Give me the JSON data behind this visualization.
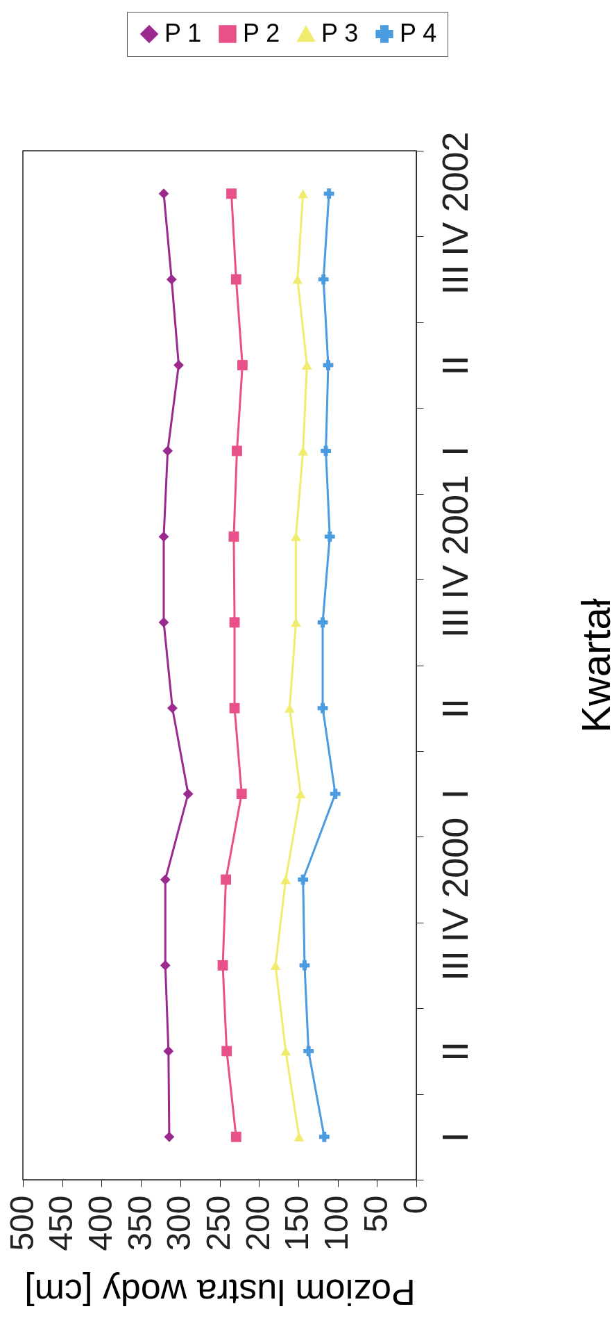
{
  "chart_data": {
    "type": "line",
    "orientation": "horizontal",
    "xlabel": "Poziom lustra wody [cm]",
    "ylabel": "Kwartał",
    "categories": [
      "IV 2002",
      "III",
      "II",
      "I",
      "IV 2001",
      "III",
      "II",
      "I",
      "IV 2000",
      "III",
      "II",
      "I"
    ],
    "series": [
      {
        "name": "P 1",
        "color": "#9b2a8f",
        "marker": "diamond",
        "values": [
          321,
          311,
          302,
          316,
          321,
          321,
          310,
          290,
          319,
          319,
          315,
          314
        ]
      },
      {
        "name": "P 2",
        "color": "#e8508a",
        "marker": "square",
        "values": [
          235,
          229,
          221,
          228,
          232,
          231,
          231,
          222,
          242,
          246,
          241,
          229
        ]
      },
      {
        "name": "P 3",
        "color": "#f2ec6e",
        "marker": "triangle",
        "values": [
          144,
          151,
          139,
          144,
          153,
          153,
          161,
          147,
          166,
          179,
          166,
          149
        ]
      },
      {
        "name": "P 4",
        "color": "#4a9be0",
        "marker": "cross",
        "values": [
          111,
          118,
          112,
          115,
          110,
          119,
          119,
          103,
          144,
          142,
          137,
          117
        ]
      }
    ],
    "xlim": [
      500,
      0
    ],
    "xticks": [
      500,
      450,
      400,
      350,
      300,
      250,
      200,
      150,
      100,
      50,
      0
    ],
    "legend": "top"
  }
}
